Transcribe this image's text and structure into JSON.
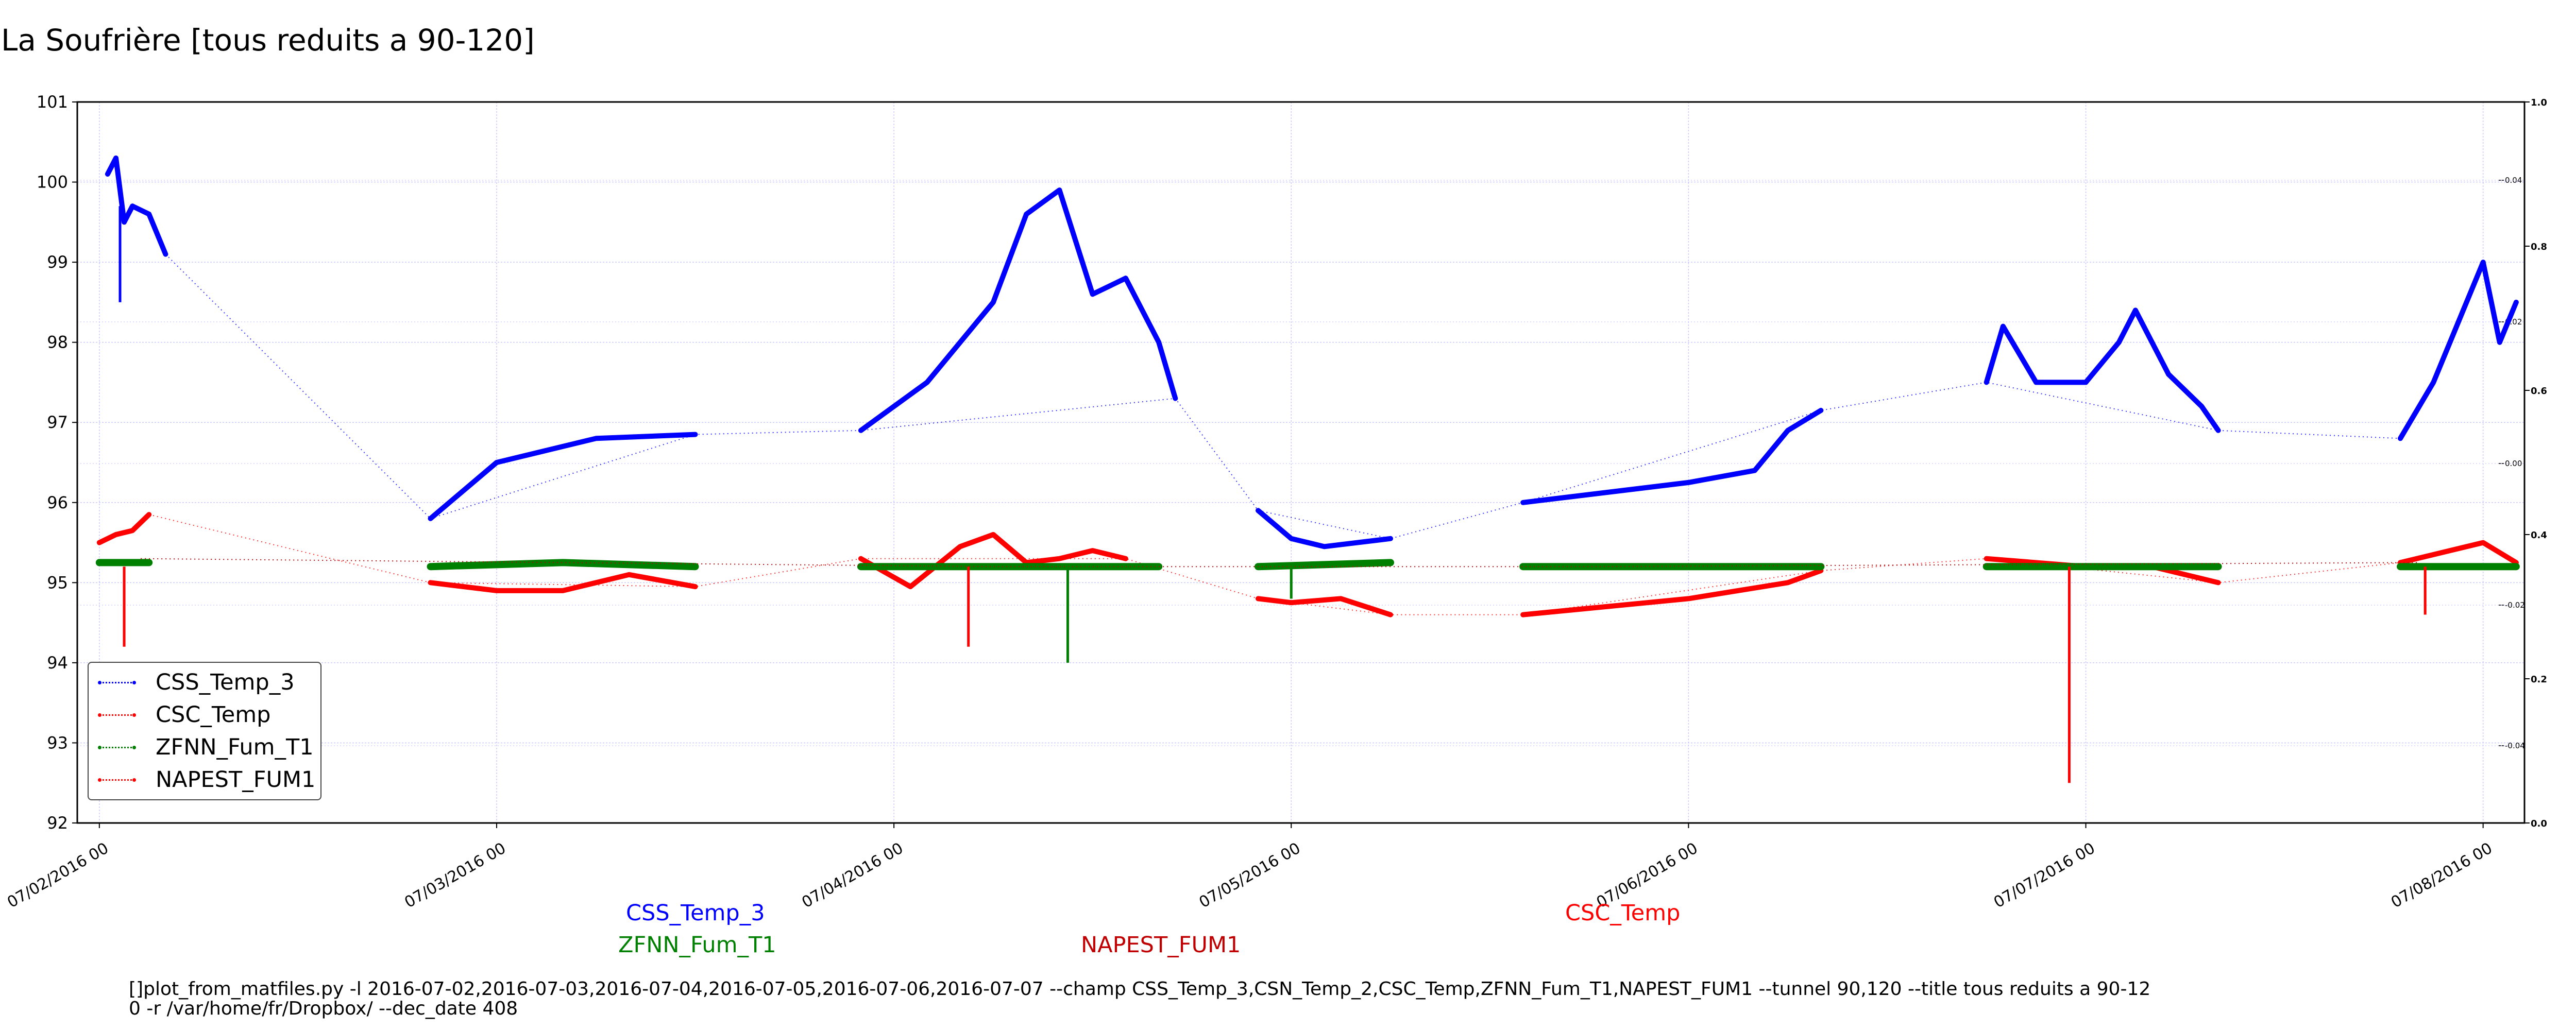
{
  "title": "La Soufrière [tous reduits a 90-120]",
  "chart_data": {
    "type": "line",
    "title": "La Soufrière [tous reduits a 90-120]",
    "xlabel": "",
    "ylabel": "",
    "x_ticks": [
      "07/02/2016 00",
      "07/03/2016 00",
      "07/04/2016 00",
      "07/05/2016 00",
      "07/06/2016 00",
      "07/07/2016 00",
      "07/08/2016 00"
    ],
    "xlim": [
      "2016-07-01 22:40",
      "2016-07-08 02:30"
    ],
    "ylim": [
      92,
      101
    ],
    "y_ticks": [
      "92",
      "93",
      "94",
      "95",
      "96",
      "97",
      "98",
      "99",
      "100",
      "101"
    ],
    "right_axis_outer": {
      "ylim": [
        0.0,
        1.0
      ],
      "ticks": [
        "0.0",
        "0.2",
        "0.4",
        "0.6",
        "0.8",
        "1.0"
      ]
    },
    "right_axis_inner": {
      "ticks": [
        "-0.04",
        "-0.02",
        "0.00",
        "0.02",
        "0.04"
      ]
    },
    "grid": true,
    "legend_placement": "lower-left",
    "series": [
      {
        "name": "CSS_Temp_3",
        "color": "#0000ff",
        "segments": [
          [
            [
              "2016-07-02 00:30",
              100.1
            ],
            [
              "2016-07-02 01:00",
              100.3
            ],
            [
              "2016-07-02 01:30",
              99.5
            ],
            [
              "2016-07-02 02:00",
              99.7
            ],
            [
              "2016-07-02 03:00",
              99.6
            ],
            [
              "2016-07-02 04:00",
              99.1
            ]
          ],
          [
            [
              "2016-07-02 20:00",
              95.8
            ],
            [
              "2016-07-03 00:00",
              96.5
            ],
            [
              "2016-07-03 06:00",
              96.8
            ],
            [
              "2016-07-03 12:00",
              96.85
            ]
          ],
          [
            [
              "2016-07-03 22:00",
              96.9
            ],
            [
              "2016-07-04 02:00",
              97.5
            ],
            [
              "2016-07-04 06:00",
              98.5
            ],
            [
              "2016-07-04 08:00",
              99.6
            ],
            [
              "2016-07-04 10:00",
              99.9
            ],
            [
              "2016-07-04 12:00",
              98.6
            ],
            [
              "2016-07-04 14:00",
              98.8
            ],
            [
              "2016-07-04 16:00",
              98.0
            ],
            [
              "2016-07-04 17:00",
              97.3
            ]
          ],
          [
            [
              "2016-07-04 22:00",
              95.9
            ],
            [
              "2016-07-05 00:00",
              95.55
            ],
            [
              "2016-07-05 02:00",
              95.45
            ],
            [
              "2016-07-05 06:00",
              95.55
            ]
          ],
          [
            [
              "2016-07-05 14:00",
              96.0
            ],
            [
              "2016-07-06 00:00",
              96.25
            ],
            [
              "2016-07-06 04:00",
              96.4
            ],
            [
              "2016-07-06 06:00",
              96.9
            ],
            [
              "2016-07-06 08:00",
              97.15
            ]
          ],
          [
            [
              "2016-07-06 18:00",
              97.5
            ],
            [
              "2016-07-06 19:00",
              98.2
            ],
            [
              "2016-07-06 21:00",
              97.5
            ],
            [
              "2016-07-07 00:00",
              97.5
            ],
            [
              "2016-07-07 02:00",
              98.0
            ],
            [
              "2016-07-07 03:00",
              98.4
            ],
            [
              "2016-07-07 05:00",
              97.6
            ],
            [
              "2016-07-07 07:00",
              97.2
            ],
            [
              "2016-07-07 08:00",
              96.9
            ]
          ],
          [
            [
              "2016-07-07 19:00",
              96.8
            ],
            [
              "2016-07-07 21:00",
              97.5
            ],
            [
              "2016-07-07 23:00",
              98.5
            ],
            [
              "2016-07-08 00:00",
              99.0
            ],
            [
              "2016-07-08 01:00",
              98.0
            ],
            [
              "2016-07-08 02:00",
              98.5
            ]
          ]
        ]
      },
      {
        "name": "CSC_Temp",
        "color": "#ff0000",
        "segments": [
          [
            [
              "2016-07-02 00:00",
              95.5
            ],
            [
              "2016-07-02 01:00",
              95.6
            ],
            [
              "2016-07-02 02:00",
              95.65
            ],
            [
              "2016-07-02 03:00",
              95.85
            ]
          ],
          [
            [
              "2016-07-02 20:00",
              95.0
            ],
            [
              "2016-07-03 00:00",
              94.9
            ],
            [
              "2016-07-03 04:00",
              94.9
            ],
            [
              "2016-07-03 08:00",
              95.1
            ],
            [
              "2016-07-03 12:00",
              94.95
            ]
          ],
          [
            [
              "2016-07-03 22:00",
              95.3
            ],
            [
              "2016-07-04 01:00",
              94.95
            ],
            [
              "2016-07-04 04:00",
              95.45
            ],
            [
              "2016-07-04 06:00",
              95.6
            ],
            [
              "2016-07-04 08:00",
              95.25
            ],
            [
              "2016-07-04 10:00",
              95.3
            ],
            [
              "2016-07-04 12:00",
              95.4
            ],
            [
              "2016-07-04 14:00",
              95.3
            ]
          ],
          [
            [
              "2016-07-04 22:00",
              94.8
            ],
            [
              "2016-07-05 00:00",
              94.75
            ],
            [
              "2016-07-05 03:00",
              94.8
            ],
            [
              "2016-07-05 06:00",
              94.6
            ]
          ],
          [
            [
              "2016-07-05 14:00",
              94.6
            ],
            [
              "2016-07-06 00:00",
              94.8
            ],
            [
              "2016-07-06 06:00",
              95.0
            ],
            [
              "2016-07-06 08:00",
              95.15
            ]
          ],
          [
            [
              "2016-07-06 18:00",
              95.3
            ],
            [
              "2016-07-07 00:00",
              95.2
            ],
            [
              "2016-07-07 04:00",
              95.2
            ],
            [
              "2016-07-07 08:00",
              95.0
            ]
          ],
          [
            [
              "2016-07-07 19:00",
              95.25
            ],
            [
              "2016-07-07 22:00",
              95.4
            ],
            [
              "2016-07-08 00:00",
              95.5
            ],
            [
              "2016-07-08 02:00",
              95.25
            ]
          ]
        ]
      },
      {
        "name": "ZFNN_Fum_T1",
        "color": "#008000",
        "segments": [
          [
            [
              "2016-07-02 00:00",
              95.25
            ],
            [
              "2016-07-02 03:00",
              95.25
            ]
          ],
          [
            [
              "2016-07-02 20:00",
              95.2
            ],
            [
              "2016-07-03 04:00",
              95.25
            ],
            [
              "2016-07-03 12:00",
              95.2
            ]
          ],
          [
            [
              "2016-07-03 22:00",
              95.2
            ],
            [
              "2016-07-04 08:00",
              95.2
            ],
            [
              "2016-07-04 16:00",
              95.2
            ]
          ],
          [
            [
              "2016-07-04 22:00",
              95.2
            ],
            [
              "2016-07-05 06:00",
              95.25
            ]
          ],
          [
            [
              "2016-07-05 14:00",
              95.2
            ],
            [
              "2016-07-06 00:00",
              95.2
            ],
            [
              "2016-07-06 08:00",
              95.2
            ]
          ],
          [
            [
              "2016-07-06 18:00",
              95.2
            ],
            [
              "2016-07-07 00:00",
              95.2
            ],
            [
              "2016-07-07 08:00",
              95.2
            ]
          ],
          [
            [
              "2016-07-07 19:00",
              95.2
            ],
            [
              "2016-07-08 02:00",
              95.2
            ]
          ]
        ]
      },
      {
        "name": "NAPEST_FUM1",
        "color": "#c00000",
        "segments": [
          [
            [
              "2016-07-02 02:30",
              95.3
            ],
            [
              "2016-07-04 06:00",
              95.2
            ],
            [
              "2016-07-05 18:00",
              95.2
            ],
            [
              "2016-07-07 20:00",
              95.25
            ]
          ]
        ]
      }
    ],
    "spikes": [
      {
        "series": "CSC_Temp",
        "x": "2016-07-02 01:30",
        "y": 94.2
      },
      {
        "series": "CSC_Temp",
        "x": "2016-07-04 04:30",
        "y": 94.2
      },
      {
        "series": "CSC_Temp",
        "x": "2016-07-06 23:00",
        "y": 92.5
      },
      {
        "series": "CSC_Temp",
        "x": "2016-07-07 20:30",
        "y": 94.6
      },
      {
        "series": "ZFNN_Fum_T1",
        "x": "2016-07-04 10:30",
        "y": 94.0
      },
      {
        "series": "ZFNN_Fum_T1",
        "x": "2016-07-05 00:00",
        "y": 94.8
      },
      {
        "series": "CSS_Temp_3",
        "x": "2016-07-02 01:15",
        "y": 98.5
      }
    ],
    "connector_lines": [
      {
        "series": "CSS_Temp_3",
        "points": [
          [
            "2016-07-02 04:00",
            99.1
          ],
          [
            "2016-07-02 20:00",
            95.8
          ],
          [
            "2016-07-03 12:00",
            96.85
          ],
          [
            "2016-07-03 22:00",
            96.9
          ],
          [
            "2016-07-04 17:00",
            97.3
          ],
          [
            "2016-07-04 22:00",
            95.9
          ],
          [
            "2016-07-05 06:00",
            95.55
          ],
          [
            "2016-07-05 14:00",
            96.0
          ],
          [
            "2016-07-06 08:00",
            97.15
          ],
          [
            "2016-07-06 18:00",
            97.5
          ],
          [
            "2016-07-07 08:00",
            96.9
          ],
          [
            "2016-07-07 19:00",
            96.8
          ]
        ]
      },
      {
        "series": "CSC_Temp",
        "points": [
          [
            "2016-07-02 03:00",
            95.85
          ],
          [
            "2016-07-02 20:00",
            95.0
          ],
          [
            "2016-07-03 12:00",
            94.95
          ],
          [
            "2016-07-03 22:00",
            95.3
          ],
          [
            "2016-07-04 14:00",
            95.3
          ],
          [
            "2016-07-04 22:00",
            94.8
          ],
          [
            "2016-07-05 06:00",
            94.6
          ],
          [
            "2016-07-05 14:00",
            94.6
          ],
          [
            "2016-07-06 08:00",
            95.15
          ],
          [
            "2016-07-06 18:00",
            95.3
          ],
          [
            "2016-07-07 08:00",
            95.0
          ],
          [
            "2016-07-07 19:00",
            95.25
          ]
        ]
      }
    ]
  },
  "legend": {
    "items": [
      {
        "label": "CSS_Temp_3",
        "color": "#0000ff"
      },
      {
        "label": "CSC_Temp",
        "color": "#ff0000"
      },
      {
        "label": "ZFNN_Fum_T1",
        "color": "#008000"
      },
      {
        "label": "NAPEST_FUM1",
        "color": "#ff0000"
      }
    ]
  },
  "captions": {
    "css_temp_3": "CSS_Temp_3",
    "zfnn_fum_t1": "ZFNN_Fum_T1",
    "napest_fum1": "NAPEST_FUM1",
    "csc_temp": "CSC_Temp"
  },
  "command": {
    "line1": "[]plot_from_matfiles.py -l 2016-07-02,2016-07-03,2016-07-04,2016-07-05,2016-07-06,2016-07-07 --champ CSS_Temp_3,CSN_Temp_2,CSC_Temp,ZFNN_Fum_T1,NAPEST_FUM1 --tunnel 90,120 --title tous reduits a 90-12",
    "line2": "0 -r /var/home/fr/Dropbox/ --dec_date 408"
  }
}
